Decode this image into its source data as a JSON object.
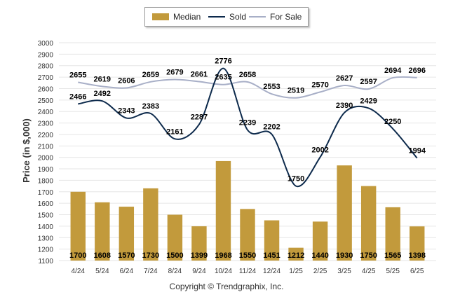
{
  "chart_data": {
    "type": "bar",
    "categories": [
      "4/24",
      "5/24",
      "6/24",
      "7/24",
      "8/24",
      "9/24",
      "10/24",
      "11/24",
      "12/24",
      "1/25",
      "2/25",
      "3/25",
      "4/25",
      "5/25",
      "6/25"
    ],
    "series": [
      {
        "name": "Median",
        "type": "bar",
        "color": "#C29A3C",
        "values": [
          1700,
          1608,
          1570,
          1730,
          1500,
          1399,
          1968,
          1550,
          1451,
          1212,
          1440,
          1930,
          1750,
          1565,
          1398
        ]
      },
      {
        "name": "Sold",
        "type": "line",
        "color": "#0D2A4C",
        "values": [
          2466,
          2492,
          2343,
          2383,
          2161,
          2287,
          2776,
          2239,
          2202,
          1750,
          2002,
          2390,
          2429,
          2250,
          1994
        ]
      },
      {
        "name": "For Sale",
        "type": "line",
        "color": "#A8AFC7",
        "values": [
          2655,
          2619,
          2606,
          2659,
          2679,
          2661,
          2635,
          2658,
          2553,
          2519,
          2570,
          2627,
          2597,
          2694,
          2696
        ]
      }
    ],
    "ylabel": "Price (in $,000)",
    "xlabel": "",
    "ylim": [
      1100,
      3000
    ],
    "yticks": [
      1100,
      1200,
      1300,
      1400,
      1500,
      1600,
      1700,
      1800,
      1900,
      2000,
      2100,
      2200,
      2300,
      2400,
      2500,
      2600,
      2700,
      2800,
      2900,
      3000
    ],
    "grid": true,
    "legend_position": "top-center"
  },
  "copyright": "Copyright © Trendgraphix, Inc."
}
